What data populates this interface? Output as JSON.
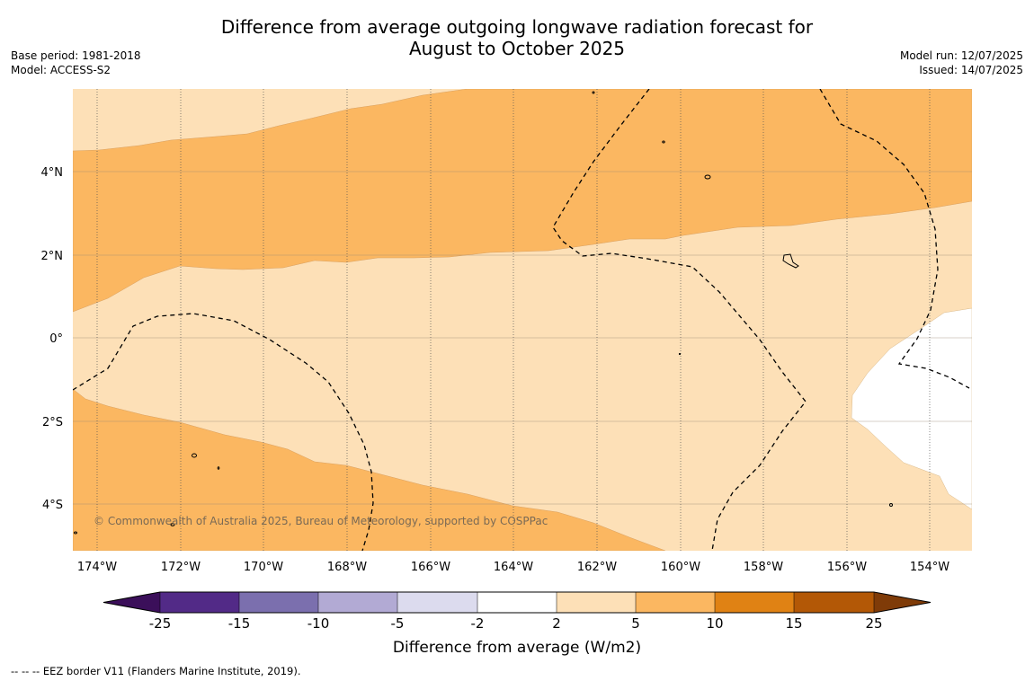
{
  "title_line1": "Difference from average outgoing longwave radiation forecast for",
  "title_line2": "August to October 2025",
  "base_period": "Base period: 1981-2018",
  "model": "Model: ACCESS-S2",
  "model_run": "Model run: 12/07/2025",
  "issued": "Issued: 14/07/2025",
  "copyright": "© Commonwealth of Australia 2025, Bureau of Meteorology, supported by COSPPac",
  "footnote": "--  --  -- EEZ border V11 (Flanders Marine Institute, 2019).",
  "map": {
    "lat_labels": [
      "4°N",
      "2°N",
      "0°",
      "2°S",
      "4°S"
    ],
    "lon_labels": [
      "174°W",
      "172°W",
      "170°W",
      "168°W",
      "166°W",
      "164°W",
      "162°W",
      "160°W",
      "158°W",
      "156°W",
      "154°W"
    ],
    "extent": {
      "lon_west": -174.6,
      "lon_east": -153.0,
      "lat_south": -5.2,
      "lat_north": 5.85
    }
  },
  "colorbar": {
    "title": "Difference from average (W/m2)",
    "tick_labels": [
      "-25",
      "-15",
      "-10",
      "-5",
      "-2",
      "2",
      "5",
      "10",
      "15",
      "25"
    ],
    "colors": [
      "#3b0f5a",
      "#522a87",
      "#7b6fae",
      "#b2aad4",
      "#dcdbee",
      "#ffffff",
      "#fde0b7",
      "#fbb761",
      "#e08214",
      "#b35806",
      "#7f3b08"
    ]
  }
}
